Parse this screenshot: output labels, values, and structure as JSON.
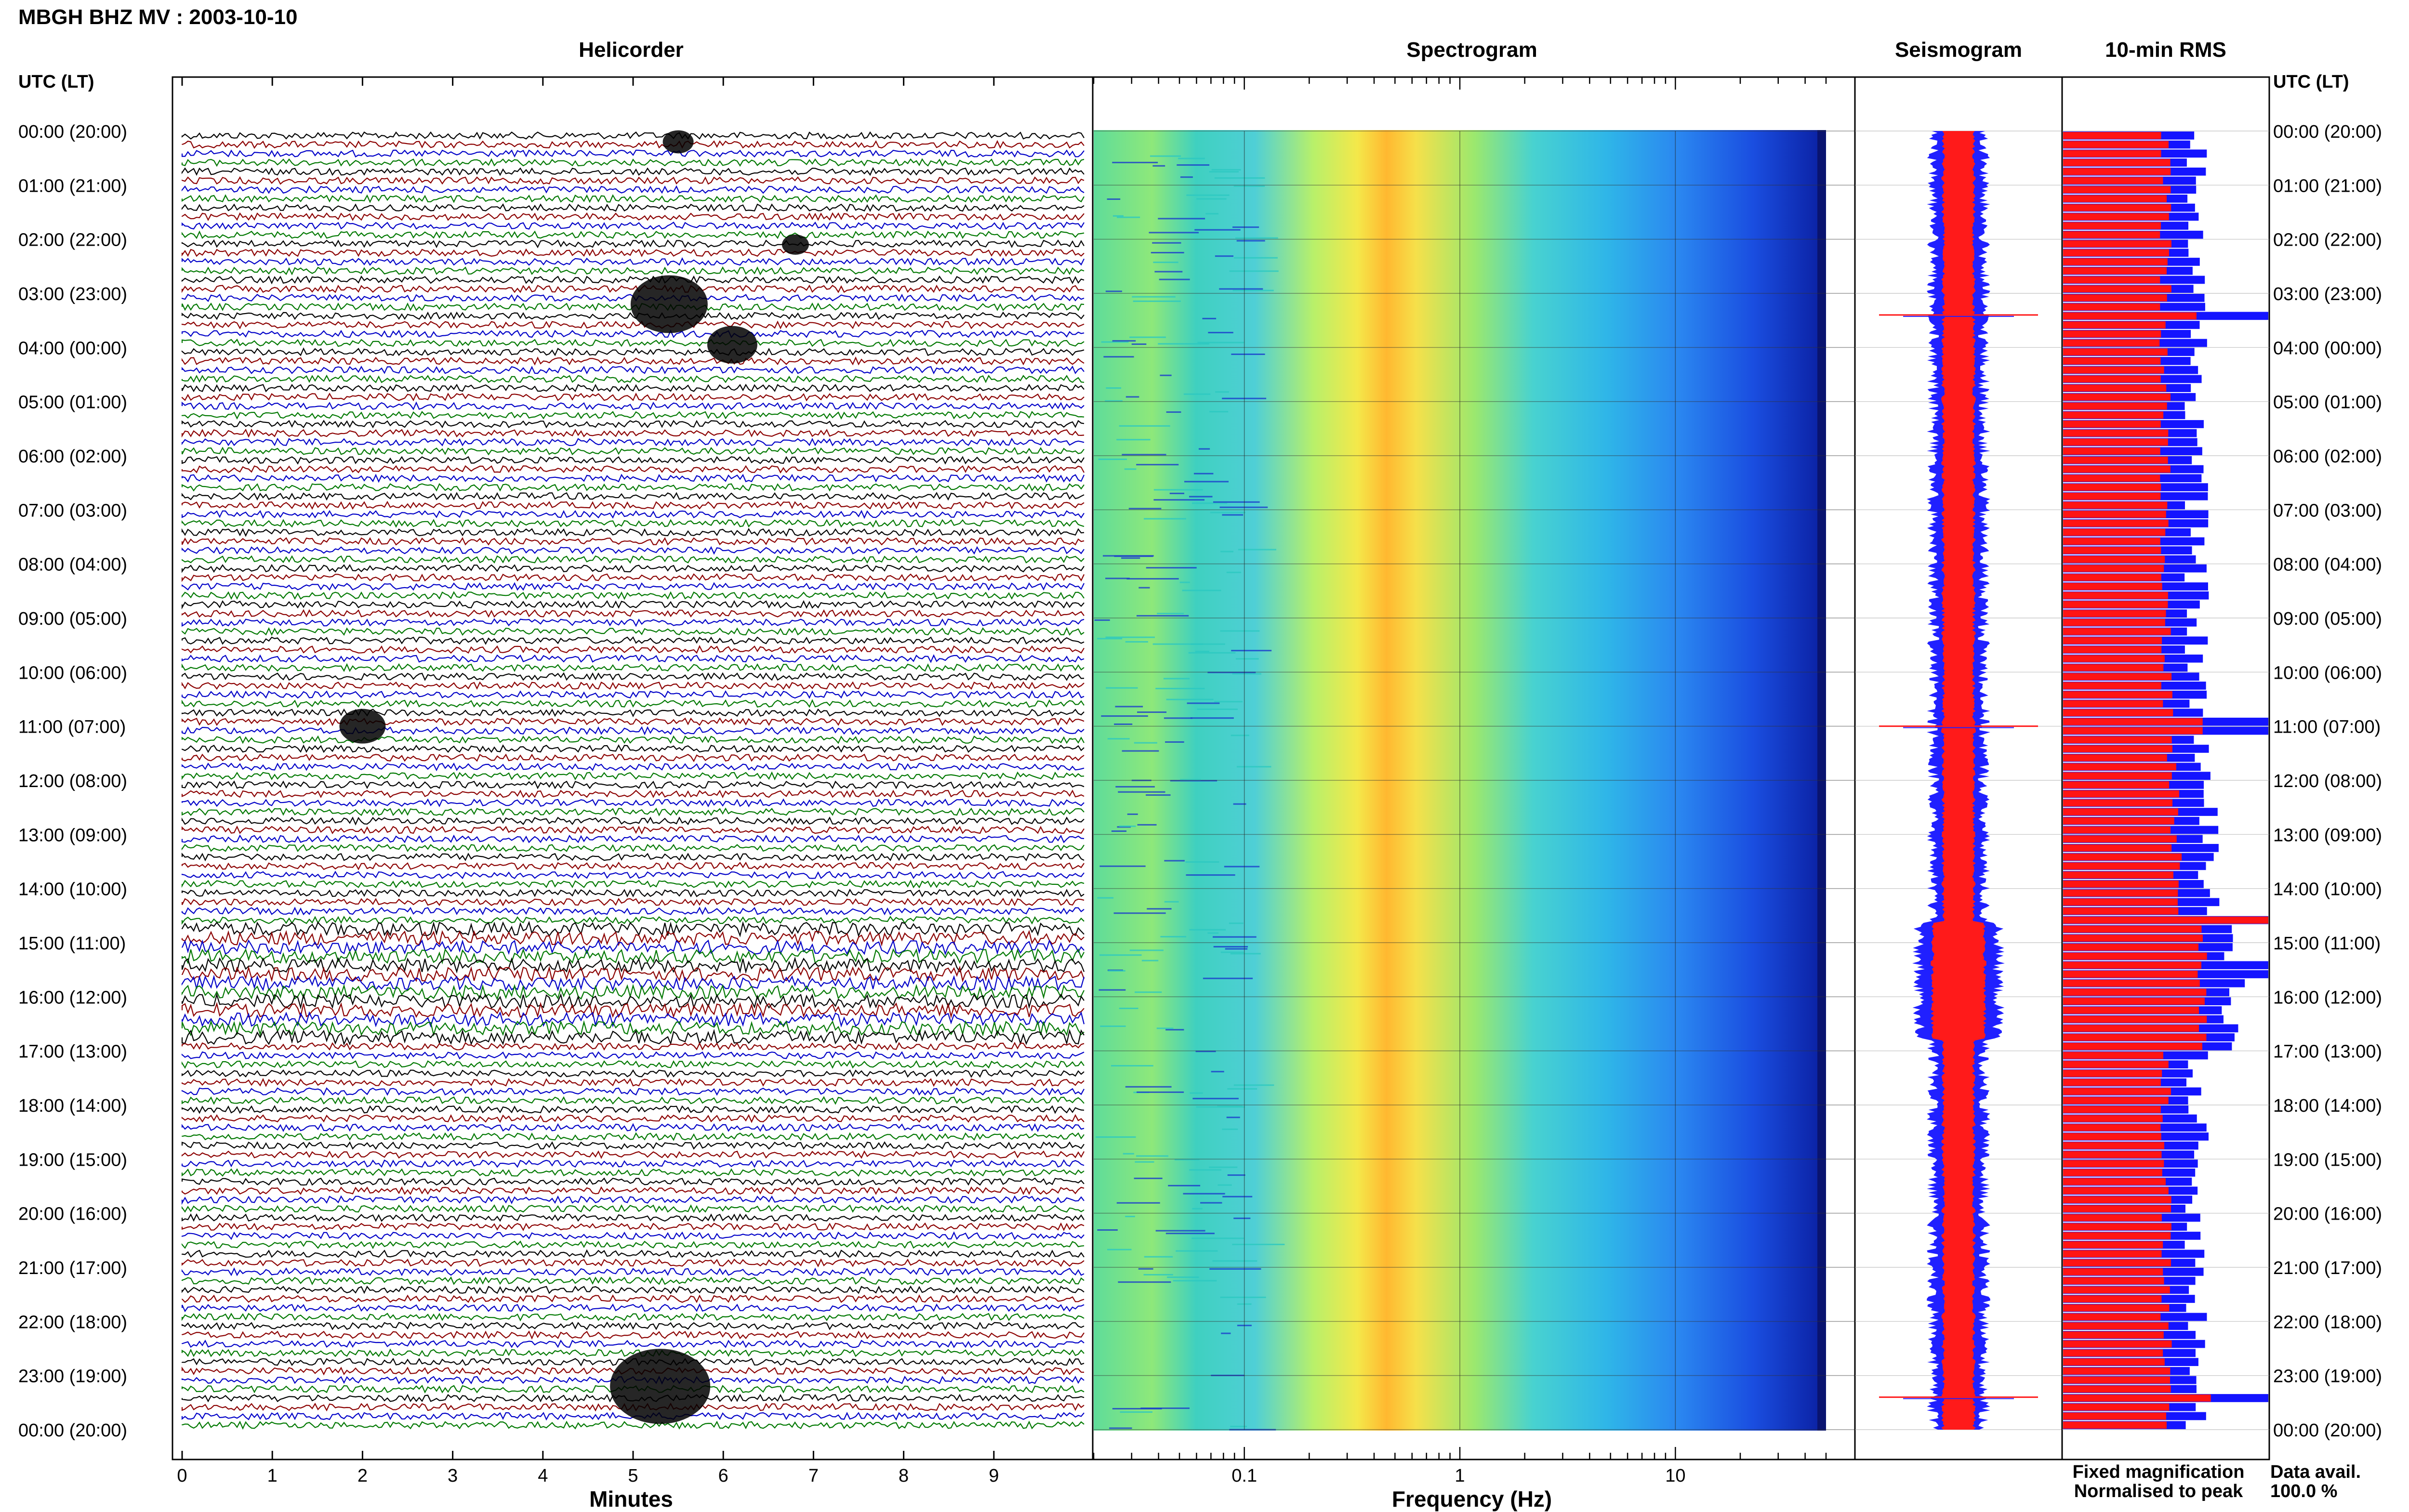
{
  "page": {
    "title": "MBGH BHZ MV : 2003-10-10"
  },
  "panels": {
    "helicorder": {
      "title": "Helicorder",
      "xlabel": "Minutes"
    },
    "spectrogram": {
      "title": "Spectrogram",
      "xlabel": "Frequency (Hz)"
    },
    "seismogram": {
      "title": "Seismogram"
    },
    "rms": {
      "title": "10-min RMS"
    }
  },
  "axis": {
    "left_header": "UTC (LT)",
    "right_header": "UTC (LT)",
    "time_labels": [
      "00:00 (20:00)",
      "01:00 (21:00)",
      "02:00 (22:00)",
      "03:00 (23:00)",
      "04:00 (00:00)",
      "05:00 (01:00)",
      "06:00 (02:00)",
      "07:00 (03:00)",
      "08:00 (04:00)",
      "09:00 (05:00)",
      "10:00 (06:00)",
      "11:00 (07:00)",
      "12:00 (08:00)",
      "13:00 (09:00)",
      "14:00 (10:00)",
      "15:00 (11:00)",
      "16:00 (12:00)",
      "17:00 (13:00)",
      "18:00 (14:00)",
      "19:00 (15:00)",
      "20:00 (16:00)",
      "21:00 (17:00)",
      "22:00 (18:00)",
      "23:00 (19:00)",
      "00:00 (20:00)"
    ]
  },
  "legend": {
    "fixed": {
      "label": "Fixed magnification",
      "color": "#1414ff"
    },
    "normalised": {
      "label": "Normalised to peak",
      "color": "#ff1414"
    },
    "data_avail_label": "Data avail.",
    "data_avail_value": "100.0 %"
  },
  "chart_data": [
    {
      "type": "line",
      "panel": "helicorder",
      "title": "Helicorder",
      "xlabel": "Minutes",
      "xlim": [
        0,
        10
      ],
      "x_ticks": [
        "0",
        "1",
        "2",
        "3",
        "4",
        "5",
        "6",
        "7",
        "8",
        "9"
      ],
      "ylim_hours": [
        0,
        24
      ],
      "traces_per_hour": 6,
      "trace_colors": [
        "#000000",
        "#8b0000",
        "#0000c8",
        "#007800"
      ],
      "events": [
        {
          "hour": 0.2,
          "minute": 5.5,
          "size": 0.8
        },
        {
          "hour": 2.1,
          "minute": 6.8,
          "size": 0.7
        },
        {
          "hour": 3.2,
          "minute": 5.4,
          "size": 2.0
        },
        {
          "hour": 3.95,
          "minute": 6.1,
          "size": 1.3
        },
        {
          "hour": 11.0,
          "minute": 2.0,
          "size": 1.2
        },
        {
          "hour": 23.2,
          "minute": 5.3,
          "size": 2.6
        }
      ],
      "high_noise_hours": [
        14.6,
        16.8
      ]
    },
    {
      "type": "heatmap",
      "panel": "spectrogram",
      "title": "Spectrogram",
      "xlabel": "Frequency (Hz)",
      "x_scale": "log",
      "xlim": [
        0.02,
        50
      ],
      "x_ticks": [
        "0.1",
        "1",
        "10"
      ],
      "ylim_hours": [
        0,
        24
      ],
      "peak_frequency_hz": 0.35
    },
    {
      "type": "line",
      "panel": "seismogram",
      "title": "Seismogram",
      "ylim_hours": [
        0,
        24
      ],
      "spikes_hours": [
        3.4,
        11.0,
        23.4
      ],
      "high_amplitude_hours": [
        14.6,
        16.8
      ]
    },
    {
      "type": "bar",
      "panel": "rms",
      "title": "10-min RMS",
      "orientation": "horizontal",
      "ylim_hours": [
        0,
        24
      ],
      "series": [
        {
          "name": "Fixed magnification",
          "color": "#1414ff",
          "base": 0.65,
          "peaks": [
            {
              "hour": 3.4,
              "value": 1.0
            },
            {
              "hour": 11.0,
              "value": 1.0
            },
            {
              "hour": 14.6,
              "value": 1.0
            },
            {
              "hour": 15.5,
              "value": 1.0
            },
            {
              "hour": 23.4,
              "value": 1.0
            }
          ]
        },
        {
          "name": "Normalised to peak",
          "color": "#ff1414",
          "base": 0.5,
          "peaks": [
            {
              "hour": 3.4,
              "value": 0.65
            },
            {
              "hour": 11.0,
              "value": 0.68
            },
            {
              "hour": 14.6,
              "value": 1.0
            },
            {
              "hour": 23.4,
              "value": 0.72
            }
          ]
        }
      ]
    }
  ]
}
